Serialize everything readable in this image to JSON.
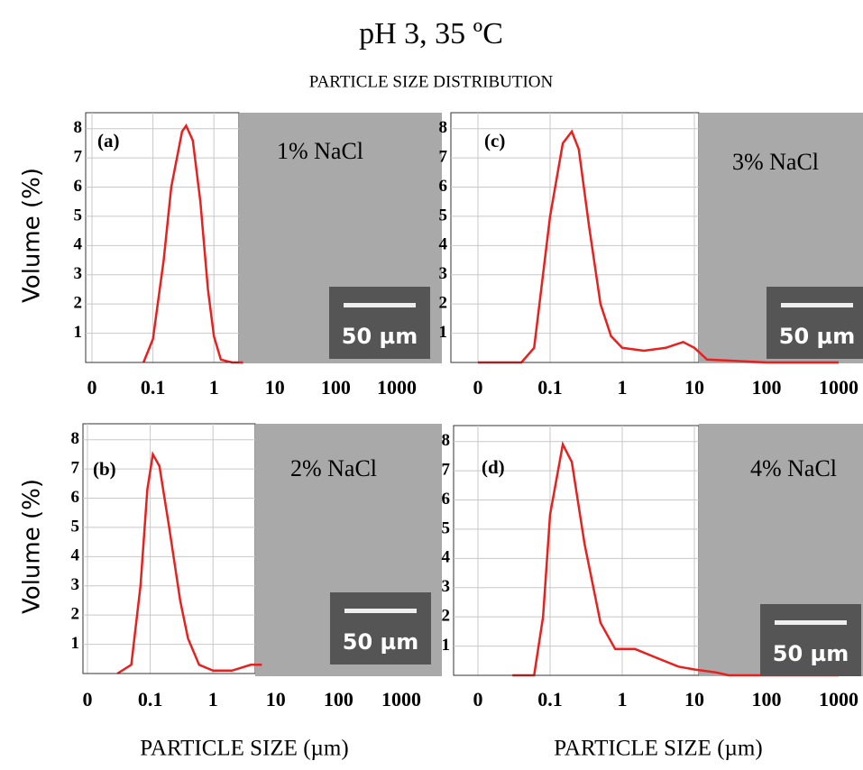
{
  "title": "pH 3, 35 ºC",
  "subtitle": "PARTICLE SIZE DISTRIBUTION",
  "chart_data": [
    {
      "type": "line",
      "panel_label": "(a)",
      "annotation": "1% NaCl",
      "scale_bar": "50 µm",
      "ylabel": "Volume (%)",
      "log_x": true,
      "grid": true,
      "x": [
        0.07,
        0.1,
        0.15,
        0.2,
        0.3,
        0.35,
        0.45,
        0.6,
        0.8,
        1,
        1.3,
        2,
        3
      ],
      "series": [
        {
          "color": "#e8201e",
          "values": [
            0,
            0.8,
            3.5,
            6,
            7.9,
            8.1,
            7.6,
            5.5,
            2.5,
            0.9,
            0.1,
            0,
            0
          ]
        }
      ],
      "xlim": [
        0.01,
        1000
      ],
      "ylim": [
        0,
        8.7
      ],
      "xticks": [
        {
          "value": 0.01,
          "label": "0"
        },
        0.1,
        1,
        10,
        100,
        1000
      ],
      "yticks": [
        1,
        2,
        3,
        4,
        5,
        6,
        7,
        8
      ]
    },
    {
      "type": "line",
      "panel_label": "(b)",
      "annotation": "2% NaCl",
      "scale_bar": "50 µm",
      "ylabel": "Volume (%)",
      "xlabel": "PARTICLE SIZE (µm)",
      "log_x": true,
      "grid": true,
      "x": [
        0.03,
        0.05,
        0.07,
        0.09,
        0.11,
        0.14,
        0.2,
        0.3,
        0.4,
        0.6,
        1,
        2,
        4,
        6
      ],
      "series": [
        {
          "color": "#e8201e",
          "values": [
            0,
            0.3,
            3,
            6.3,
            7.5,
            7.1,
            5,
            2.5,
            1.2,
            0.3,
            0.1,
            0.1,
            0.3,
            0.3
          ]
        }
      ],
      "xlim": [
        0.01,
        1000
      ],
      "ylim": [
        0,
        8.7
      ],
      "xticks": [
        {
          "value": 0.01,
          "label": "0"
        },
        0.1,
        1,
        10,
        100,
        1000
      ],
      "yticks": [
        1,
        2,
        3,
        4,
        5,
        6,
        7,
        8
      ]
    },
    {
      "type": "line",
      "panel_label": "(c)",
      "annotation": "3% NaCl",
      "scale_bar": "50 µm",
      "log_x": true,
      "grid": true,
      "x": [
        0.01,
        0.04,
        0.06,
        0.1,
        0.15,
        0.2,
        0.25,
        0.35,
        0.5,
        0.7,
        1,
        2,
        4,
        7,
        10,
        15,
        100,
        1000
      ],
      "series": [
        {
          "color": "#e8201e",
          "values": [
            0,
            0,
            0.5,
            5,
            7.5,
            7.9,
            7.3,
            4.6,
            2,
            0.9,
            0.5,
            0.4,
            0.5,
            0.7,
            0.5,
            0.1,
            0,
            0
          ]
        }
      ],
      "xlim": [
        0.01,
        1000
      ],
      "ylim": [
        0,
        8.7
      ],
      "xticks": [
        {
          "value": 0.01,
          "label": "0"
        },
        0.1,
        1,
        10,
        100,
        1000
      ],
      "yticks": [
        1,
        2,
        3,
        4,
        5,
        6,
        7,
        8
      ]
    },
    {
      "type": "line",
      "panel_label": "(d)",
      "annotation": "4% NaCl",
      "scale_bar": "50 µm",
      "xlabel": "PARTICLE SIZE (µm)",
      "log_x": true,
      "grid": true,
      "x": [
        0.03,
        0.06,
        0.08,
        0.1,
        0.15,
        0.2,
        0.3,
        0.5,
        0.8,
        1.5,
        3,
        6,
        10,
        20,
        30,
        100,
        1000
      ],
      "series": [
        {
          "color": "#e8201e",
          "values": [
            0,
            0,
            2,
            5.5,
            7.9,
            7.3,
            4.5,
            1.8,
            0.9,
            0.9,
            0.6,
            0.3,
            0.2,
            0.1,
            0,
            0,
            0
          ]
        }
      ],
      "xlim": [
        0.01,
        1000
      ],
      "ylim": [
        0,
        8.7
      ],
      "xticks": [
        {
          "value": 0.01,
          "label": "0"
        },
        0.1,
        1,
        10,
        100,
        1000
      ],
      "yticks": [
        1,
        2,
        3,
        4,
        5,
        6,
        7,
        8
      ]
    }
  ]
}
